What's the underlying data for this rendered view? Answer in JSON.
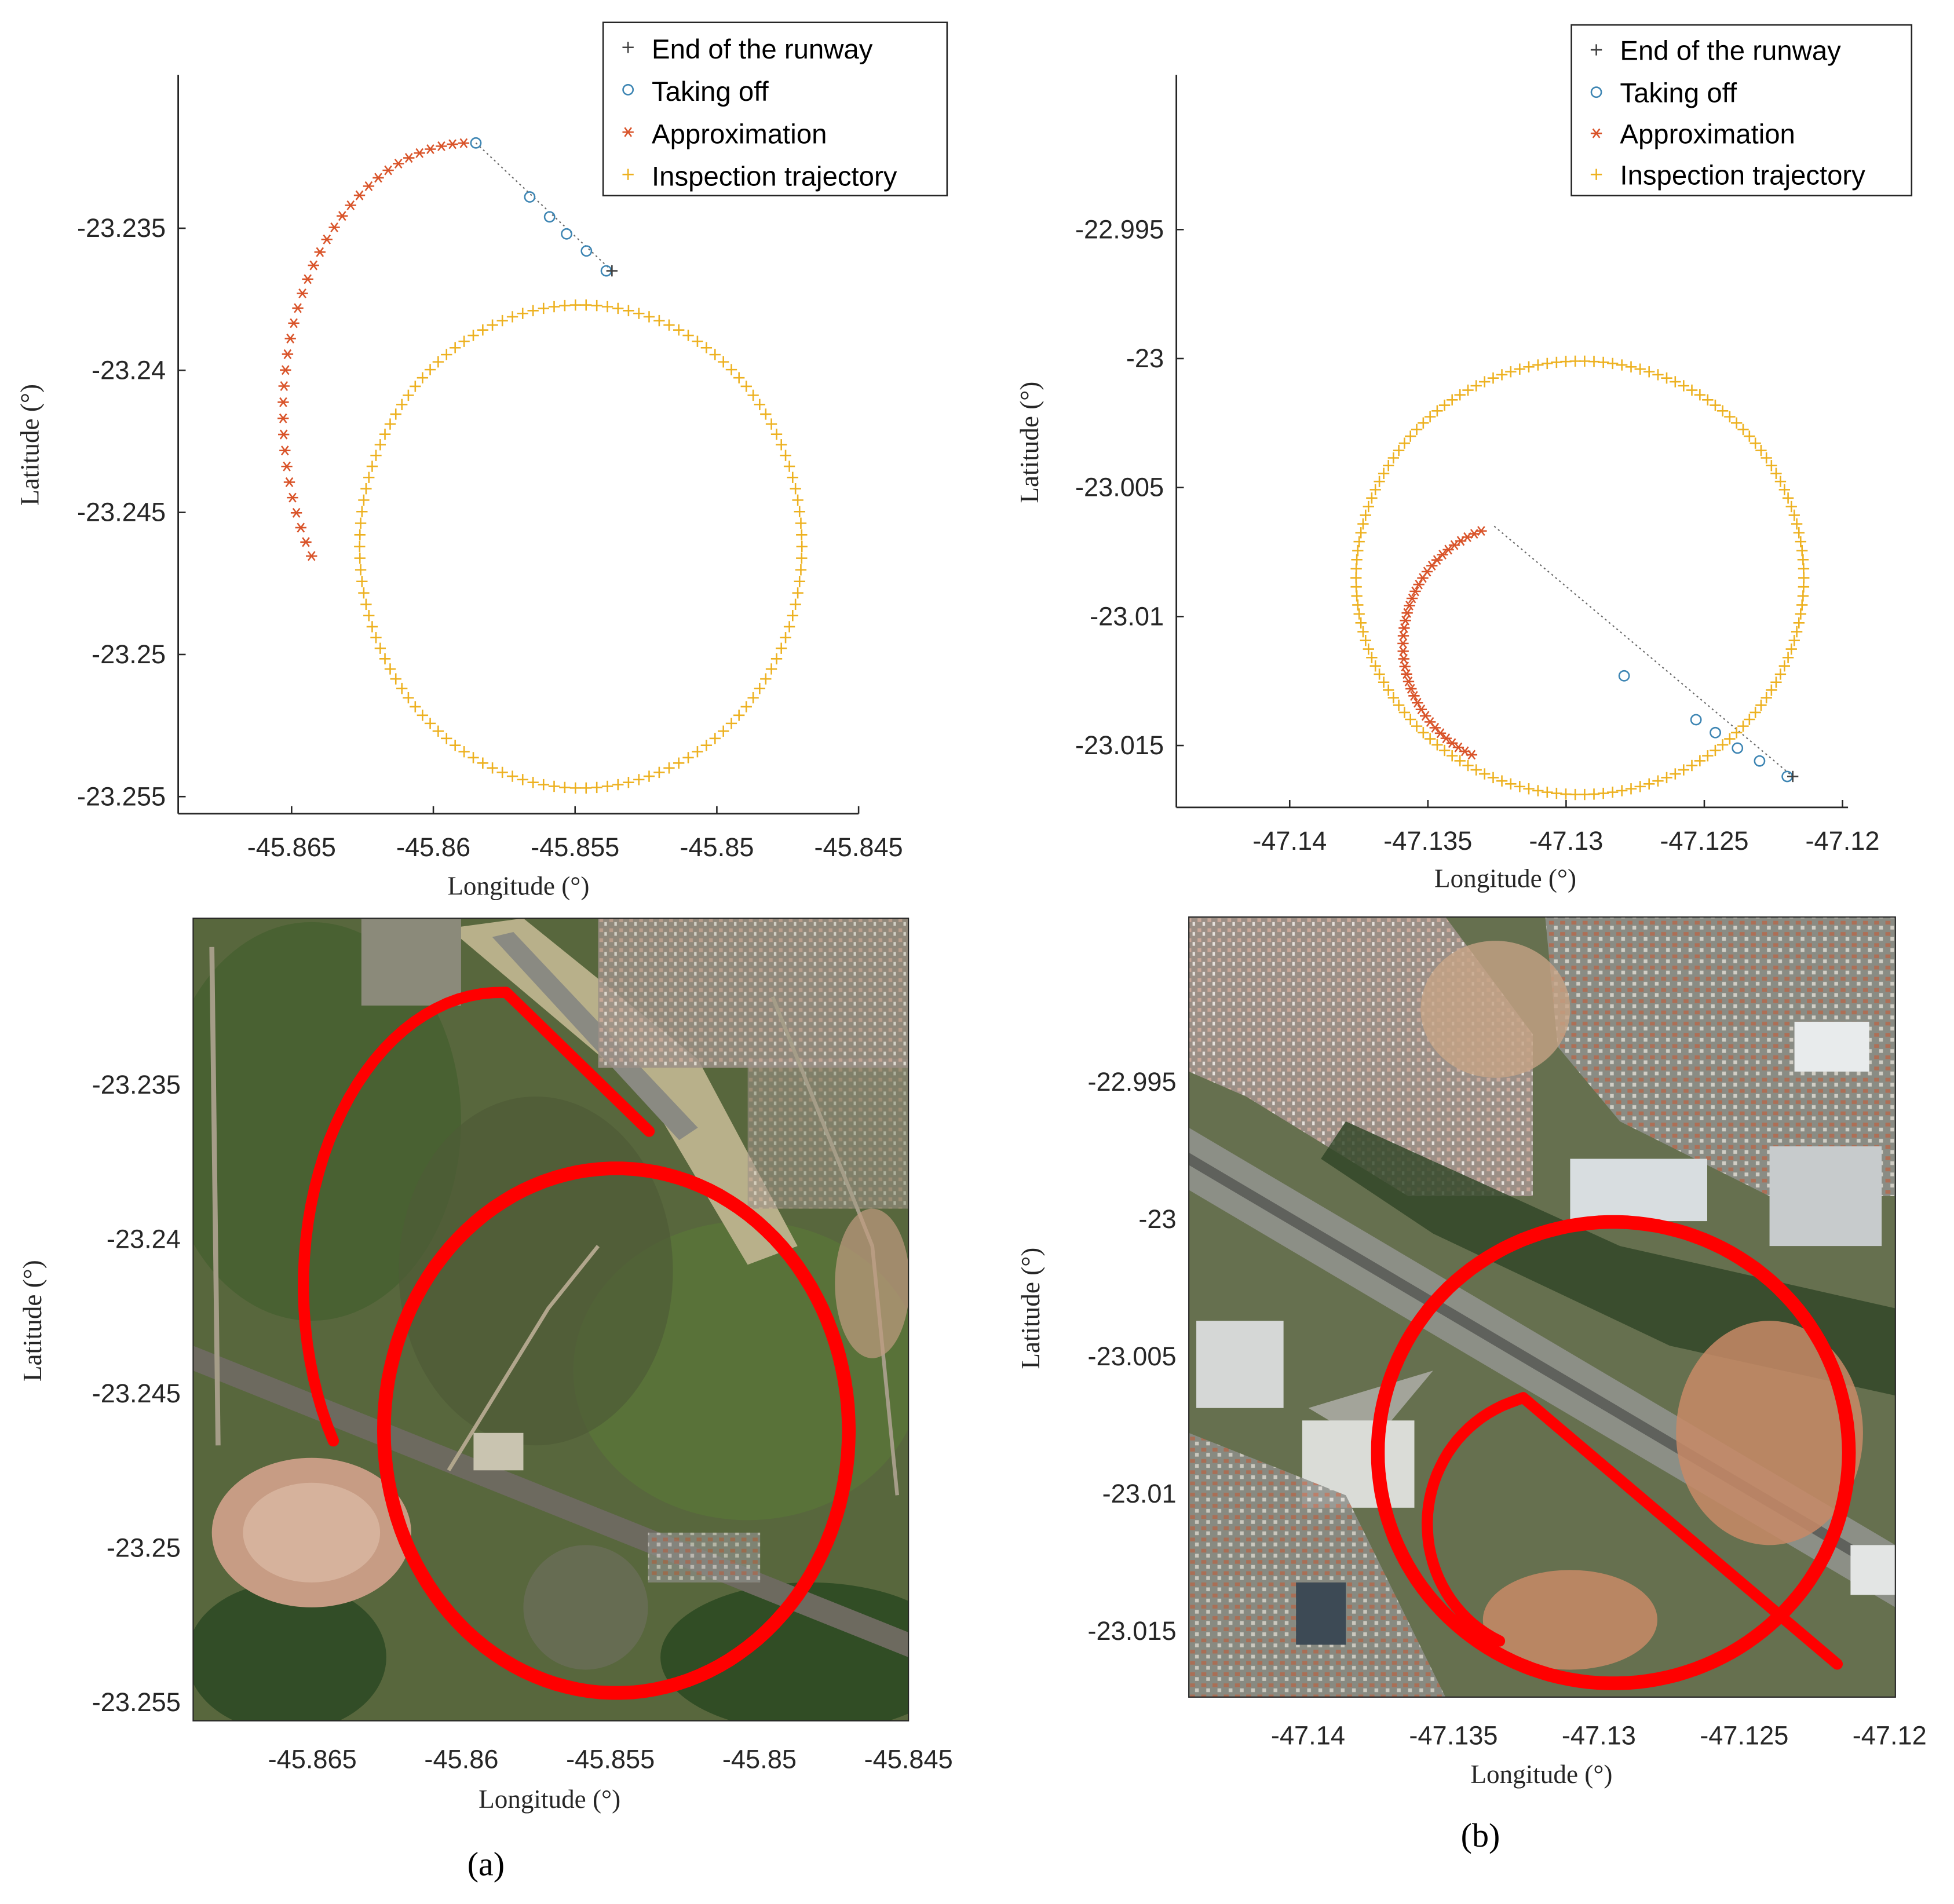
{
  "panel_labels": [
    "(a)",
    "(b)"
  ],
  "marker_colors": {
    "runway": "#404040",
    "takeoff": "#3d85b3",
    "approx": "#d9542a",
    "inspection": "#edb120",
    "map_path": "#ff0000"
  },
  "chart_data": [
    {
      "type": "scatter",
      "panel": "a-top",
      "xlabel": "Longitude (°)",
      "ylabel": "Latitude (°)",
      "xlim": [
        -45.869,
        -45.845
      ],
      "ylim": [
        -23.2556,
        -23.2296
      ],
      "xticks": [
        -45.865,
        -45.86,
        -45.855,
        -45.85,
        -45.845
      ],
      "xtick_labels": [
        "-45.865",
        "-45.86",
        "-45.855",
        "-45.85",
        "-45.845"
      ],
      "yticks": [
        -23.235,
        -23.24,
        -23.245,
        -23.25,
        -23.255
      ],
      "ytick_labels": [
        "-23.235",
        "-23.24",
        "-23.245",
        "-23.25",
        "-23.255"
      ],
      "legend_position": "top-right",
      "series": [
        {
          "name": "End of the runway",
          "marker": "plus",
          "points": [
            [
              -45.8537,
              -23.2365
            ]
          ]
        },
        {
          "name": "Taking off",
          "marker": "circle",
          "points": [
            [
              -45.8585,
              -23.232
            ],
            [
              -45.8566,
              -23.2339
            ],
            [
              -45.8559,
              -23.2346
            ],
            [
              -45.8553,
              -23.2352
            ],
            [
              -45.8546,
              -23.2358
            ],
            [
              -45.8539,
              -23.2365
            ]
          ]
        },
        {
          "name": "Approximation",
          "marker": "asterisk",
          "arc": {
            "center": [
              -45.8587,
              -23.2415
            ],
            "radius_x": 0.0066,
            "radius_y": 0.0095,
            "start_deg": 92,
            "end_deg": 212,
            "count": 36
          }
        },
        {
          "name": "Inspection trajectory",
          "marker": "plus",
          "circle": {
            "center": [
              -45.8548,
              -23.2462
            ],
            "radius_x": 0.0078,
            "radius_y": 0.0085,
            "count": 130
          }
        }
      ],
      "connector": [
        [
          -45.8585,
          -23.232
        ],
        [
          -45.8537,
          -23.2365
        ]
      ]
    },
    {
      "type": "scatter",
      "panel": "b-top",
      "xlabel": "Longitude (°)",
      "ylabel": "Latitude (°)",
      "xlim": [
        -47.1441,
        -47.1198
      ],
      "ylim": [
        -23.0174,
        -22.989
      ],
      "xticks": [
        -47.14,
        -47.135,
        -47.13,
        -47.125,
        -47.12
      ],
      "xtick_labels": [
        "-47.14",
        "-47.135",
        "-47.13",
        "-47.125",
        "-47.12"
      ],
      "yticks": [
        -22.995,
        -23,
        -23.005,
        -23.01,
        -23.015
      ],
      "ytick_labels": [
        "-22.995",
        "-23",
        "-23.005",
        "-23.01",
        "-23.015"
      ],
      "legend_position": "top-right",
      "series": [
        {
          "name": "End of the runway",
          "marker": "plus",
          "points": [
            [
              -47.1218,
              -23.0162
            ]
          ]
        },
        {
          "name": "Taking off",
          "marker": "circle",
          "points": [
            [
              -47.1279,
              -23.0123
            ],
            [
              -47.1253,
              -23.014
            ],
            [
              -47.1246,
              -23.0145
            ],
            [
              -47.1238,
              -23.0151
            ],
            [
              -47.123,
              -23.0156
            ],
            [
              -47.122,
              -23.0162
            ]
          ]
        },
        {
          "name": "Approximation",
          "marker": "asterisk",
          "arc": {
            "center": [
              -47.1316,
              -23.0111
            ],
            "radius_x": 0.0043,
            "radius_y": 0.0047,
            "start_deg": 110,
            "end_deg": 245,
            "count": 38
          }
        },
        {
          "name": "Inspection trajectory",
          "marker": "plus",
          "circle": {
            "center": [
              -47.1295,
              -23.0085
            ],
            "radius_x": 0.0081,
            "radius_y": 0.0084,
            "count": 150
          }
        }
      ],
      "connector": [
        [
          -47.1326,
          -23.0065
        ],
        [
          -47.1218,
          -23.0162
        ]
      ]
    },
    {
      "type": "scatter",
      "panel": "a-map",
      "xlabel": "Longitude (°)",
      "ylabel": "Latitude (°)",
      "xlim": [
        -45.869,
        -45.845
      ],
      "ylim": [
        -23.2556,
        -23.2296
      ],
      "xticks": [
        -45.865,
        -45.86,
        -45.855,
        -45.85,
        -45.845
      ],
      "xtick_labels": [
        "-45.865",
        "-45.86",
        "-45.855",
        "-45.85",
        "-45.845"
      ],
      "yticks": [
        -23.235,
        -23.24,
        -23.245,
        -23.25,
        -23.255
      ],
      "ytick_labels": [
        "-23.235",
        "-23.24",
        "-23.245",
        "-23.25",
        "-23.255"
      ],
      "background": "satellite-image",
      "path_style": "thick-red-line"
    },
    {
      "type": "scatter",
      "panel": "b-map",
      "xlabel": "Longitude (°)",
      "ylabel": "Latitude (°)",
      "xlim": [
        -47.1441,
        -47.1198
      ],
      "ylim": [
        -23.0174,
        -22.989
      ],
      "xticks": [
        -47.14,
        -47.135,
        -47.13,
        -47.125,
        -47.12
      ],
      "xtick_labels": [
        "-47.14",
        "-47.135",
        "-47.13",
        "-47.125",
        "-47.12"
      ],
      "yticks": [
        -22.995,
        -23,
        -23.005,
        -23.01,
        -23.015
      ],
      "ytick_labels": [
        "-22.995",
        "-23",
        "-23.005",
        "-23.01",
        "-23.015"
      ],
      "background": "satellite-image",
      "path_style": "thick-red-line"
    }
  ]
}
